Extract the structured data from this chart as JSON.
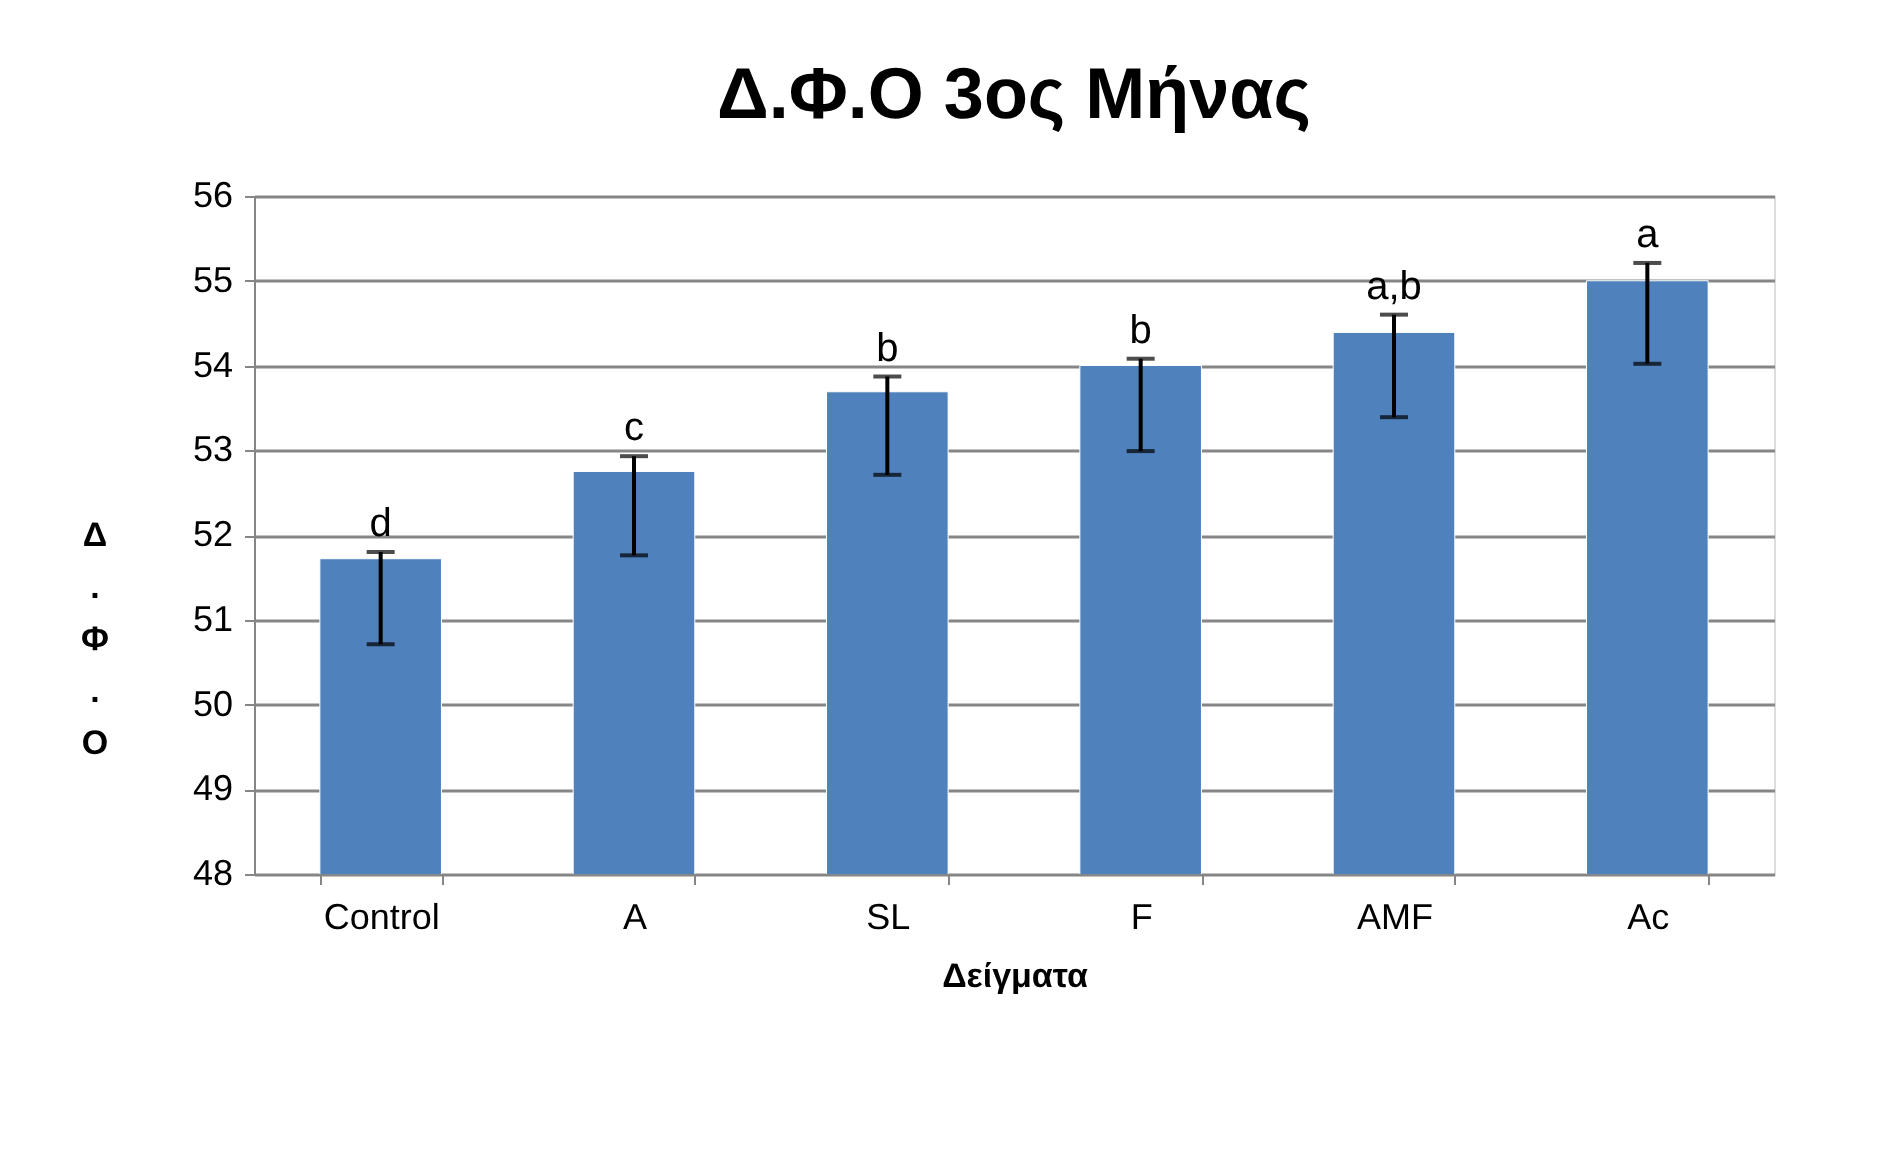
{
  "chart_data": {
    "type": "bar",
    "title": "Δ.Φ.Ο 3ος Μήνας",
    "xlabel": "Δείγματα",
    "ylabel": "Δ.Φ.Ο",
    "categories": [
      "Control",
      "A",
      "SL",
      "F",
      "AMF",
      "Ac"
    ],
    "values": [
      51.72,
      52.75,
      53.69,
      54.0,
      54.39,
      55.0
    ],
    "errors": [
      [
        50.71,
        51.8
      ],
      [
        51.76,
        52.93
      ],
      [
        52.71,
        53.87
      ],
      [
        52.99,
        54.08
      ],
      [
        53.39,
        54.6
      ],
      [
        54.02,
        55.21
      ]
    ],
    "color": "#4f81bd",
    "ylim": [
      48,
      56
    ],
    "yticks": [
      48,
      49,
      50,
      51,
      52,
      53,
      54,
      55,
      56
    ],
    "grid": "y",
    "annotations": [
      {
        "text": "d",
        "x": "Control",
        "y": 51.8
      },
      {
        "text": "c",
        "x": "A",
        "y": 52.93
      },
      {
        "text": "b",
        "x": "SL",
        "y": 53.87
      },
      {
        "text": "b",
        "x": "F",
        "y": 54.08
      },
      {
        "text": "a,b",
        "x": "AMF",
        "y": 54.6
      },
      {
        "text": "a",
        "x": "Ac",
        "y": 55.21
      }
    ]
  }
}
